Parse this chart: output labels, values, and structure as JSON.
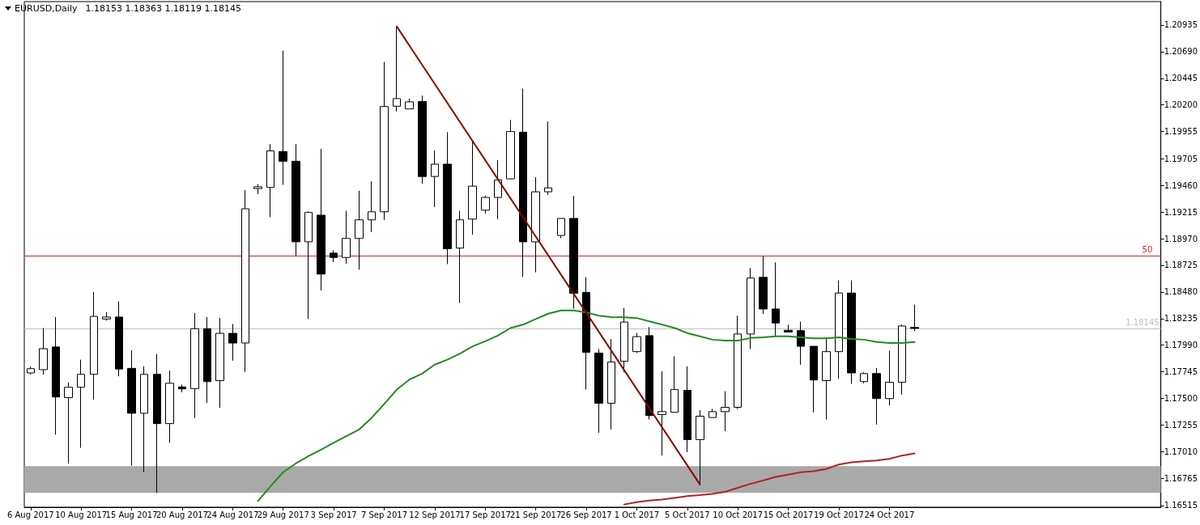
{
  "chart_data": {
    "type": "candlestick",
    "title": "EURUSD,Daily",
    "subtitle": "1.18153 1.18363 1.18119 1.18145",
    "categories": [
      "6 Aug 2017",
      null,
      null,
      null,
      "10 Aug 2017",
      null,
      null,
      null,
      "15 Aug 2017",
      null,
      null,
      null,
      "20 Aug 2017",
      null,
      null,
      null,
      "24 Aug 2017",
      null,
      null,
      null,
      "29 Aug 2017",
      null,
      null,
      null,
      "3 Sep 2017",
      null,
      null,
      null,
      "7 Sep 2017",
      null,
      null,
      null,
      "12 Sep 2017",
      null,
      null,
      null,
      "17 Sep 2017",
      null,
      null,
      null,
      "21 Sep 2017",
      null,
      null,
      null,
      "26 Sep 2017",
      null,
      null,
      null,
      "1 Oct 2017",
      null,
      null,
      null,
      "5 Oct 2017",
      null,
      null,
      null,
      "10 Oct 2017",
      null,
      null,
      null,
      "15 Oct 2017",
      null,
      null,
      null,
      "19 Oct 2017",
      null,
      null,
      null,
      "24 Oct 2017",
      null,
      null,
      null,
      null,
      null,
      null,
      null,
      null,
      null,
      null,
      null,
      null,
      null,
      null,
      null,
      null,
      null,
      null,
      null,
      null,
      null
    ],
    "ohlc": [
      [
        1.17735,
        1.17796,
        1.17719,
        1.17774
      ],
      [
        1.17765,
        1.18148,
        1.17719,
        1.17958
      ],
      [
        1.17974,
        1.18249,
        1.17168,
        1.17514
      ],
      [
        1.17508,
        1.17649,
        1.16902,
        1.17603
      ],
      [
        1.17603,
        1.17857,
        1.17046,
        1.17722
      ],
      [
        1.17722,
        1.18479,
        1.1749,
        1.18255
      ],
      [
        1.18231,
        1.18295,
        1.18216,
        1.18249
      ],
      [
        1.18249,
        1.18393,
        1.17704,
        1.17771
      ],
      [
        1.17777,
        1.17943,
        1.16883,
        1.17364
      ],
      [
        1.17364,
        1.17796,
        1.16822,
        1.17722
      ],
      [
        1.17722,
        1.17909,
        1.16632,
        1.17269
      ],
      [
        1.17269,
        1.17757,
        1.17092,
        1.1764
      ],
      [
        1.17606,
        1.17628,
        1.17557,
        1.17588
      ],
      [
        1.17591,
        1.18286,
        1.17321,
        1.18142
      ],
      [
        1.18142,
        1.18249,
        1.17459,
        1.17655
      ],
      [
        1.17664,
        1.1824,
        1.17413,
        1.18099
      ],
      [
        1.18099,
        1.18185,
        1.17848,
        1.1801
      ],
      [
        1.1801,
        1.19416,
        1.17744,
        1.19245
      ],
      [
        1.19431,
        1.19471,
        1.19379,
        1.19447
      ],
      [
        1.19441,
        1.19839,
        1.19168,
        1.19777
      ],
      [
        1.19771,
        1.20699,
        1.19465,
        1.19682
      ],
      [
        1.19682,
        1.19839,
        1.18813,
        1.18941
      ],
      [
        1.18941,
        1.1922,
        1.18231,
        1.19211
      ],
      [
        1.19186,
        1.19796,
        1.18494,
        1.18644
      ],
      [
        1.18837,
        1.18862,
        1.18755,
        1.18797
      ],
      [
        1.18797,
        1.19226,
        1.18739,
        1.18972
      ],
      [
        1.18972,
        1.1941,
        1.18684,
        1.19143
      ],
      [
        1.19143,
        1.19496,
        1.1903,
        1.19217
      ],
      [
        1.19217,
        1.20595,
        1.19143,
        1.20185
      ],
      [
        1.20188,
        1.2092,
        1.20139,
        1.20258
      ],
      [
        1.20163,
        1.20258,
        1.20163,
        1.20228
      ],
      [
        1.20231,
        1.20286,
        1.19474,
        1.19542
      ],
      [
        1.19542,
        1.1978,
        1.1926,
        1.19655
      ],
      [
        1.19655,
        1.19949,
        1.18736,
        1.18877
      ],
      [
        1.18883,
        1.19226,
        1.18378,
        1.19143
      ],
      [
        1.1915,
        1.19869,
        1.19006,
        1.19453
      ],
      [
        1.19232,
        1.19367,
        1.19199,
        1.19349
      ],
      [
        1.19349,
        1.19692,
        1.1915,
        1.19511
      ],
      [
        1.1952,
        1.20062,
        1.1952,
        1.19955
      ],
      [
        1.19949,
        1.2035,
        1.18617,
        1.18941
      ],
      [
        1.18941,
        1.19535,
        1.1866,
        1.19401
      ],
      [
        1.19401,
        1.20047,
        1.19373,
        1.19437
      ],
      [
        1.18999,
        1.19156,
        1.18975,
        1.19156
      ],
      [
        1.19156,
        1.19364,
        1.18326,
        1.18467
      ],
      [
        1.18476,
        1.18617,
        1.17582,
        1.17925
      ],
      [
        1.17918,
        1.17955,
        1.17183,
        1.17456
      ],
      [
        1.17456,
        1.18047,
        1.17214,
        1.17836
      ],
      [
        1.17842,
        1.18332,
        1.17741,
        1.18203
      ],
      [
        1.17931,
        1.18102,
        1.17918,
        1.18069
      ],
      [
        1.18078,
        1.18157,
        1.17306,
        1.17343
      ],
      [
        1.17352,
        1.1775,
        1.16975,
        1.17379
      ],
      [
        1.17373,
        1.17888,
        1.17373,
        1.17582
      ],
      [
        1.17575,
        1.17796,
        1.17006,
        1.17122
      ],
      [
        1.17122,
        1.17392,
        1.16709,
        1.17337
      ],
      [
        1.17325,
        1.17404,
        1.17325,
        1.17379
      ],
      [
        1.17379,
        1.17567,
        1.17199,
        1.17419
      ],
      [
        1.17419,
        1.18261,
        1.17404,
        1.18093
      ],
      [
        1.18093,
        1.18699,
        1.17955,
        1.18608
      ],
      [
        1.18614,
        1.18807,
        1.18277,
        1.18323
      ],
      [
        1.18323,
        1.18751,
        1.18078,
        1.18194
      ],
      [
        1.18127,
        1.18179,
        1.18111,
        1.18111
      ],
      [
        1.18124,
        1.18206,
        1.17811,
        1.1798
      ],
      [
        1.1798,
        1.1798,
        1.17373,
        1.1767
      ],
      [
        1.17664,
        1.18062,
        1.17306,
        1.17931
      ],
      [
        1.17931,
        1.18586,
        1.1768,
        1.1847
      ],
      [
        1.1847,
        1.18586,
        1.17634,
        1.17735
      ],
      [
        1.17655,
        1.17741,
        1.1764,
        1.17729
      ],
      [
        1.17729,
        1.17781,
        1.1726,
        1.17499
      ],
      [
        1.17499,
        1.1794,
        1.17435,
        1.17649
      ],
      [
        1.17649,
        1.18179,
        1.17536,
        1.18167
      ],
      [
        1.18153,
        1.18363,
        1.18119,
        1.18145
      ],
      null,
      null,
      null,
      null,
      null,
      null,
      null,
      null,
      null,
      null,
      null,
      null,
      null,
      null,
      null,
      null,
      null,
      null,
      null
    ],
    "series": [
      {
        "type": "line",
        "color": "#228b22",
        "values": [
          null,
          null,
          null,
          null,
          null,
          null,
          null,
          null,
          null,
          null,
          null,
          null,
          null,
          null,
          null,
          null,
          null,
          null,
          1.16556,
          1.16693,
          1.16822,
          1.16902,
          1.16969,
          1.1703,
          1.17092,
          1.17153,
          1.17214,
          1.17321,
          1.1745,
          1.17582,
          1.17674,
          1.17729,
          1.17811,
          1.17857,
          1.17913,
          1.1798,
          1.18026,
          1.18078,
          1.18148,
          1.18179,
          1.18231,
          1.1828,
          1.1831,
          1.1831,
          1.18292,
          1.18261,
          1.18249,
          1.18246,
          1.1824,
          1.18209,
          1.18179,
          1.18148,
          1.18102,
          1.18072,
          1.18041,
          1.18032,
          1.18032,
          1.18056,
          1.18062,
          1.18072,
          1.18072,
          1.18062,
          1.18053,
          1.18053,
          1.18062,
          1.18047,
          1.18041,
          1.18019,
          1.1801,
          1.1801,
          1.18019,
          null,
          null,
          null,
          null,
          null,
          null,
          null,
          null,
          null,
          null,
          null,
          null,
          null,
          null,
          null,
          null,
          null,
          null,
          null
        ]
      },
      {
        "type": "line",
        "color": "#b22222",
        "values": [
          null,
          null,
          null,
          null,
          null,
          null,
          null,
          null,
          null,
          null,
          null,
          null,
          null,
          null,
          null,
          null,
          null,
          null,
          null,
          null,
          null,
          null,
          null,
          null,
          null,
          null,
          null,
          null,
          null,
          null,
          null,
          null,
          null,
          null,
          null,
          null,
          null,
          null,
          null,
          null,
          null,
          null,
          null,
          null,
          null,
          null,
          null,
          1.16525,
          1.16546,
          1.16562,
          1.16571,
          1.16586,
          1.16602,
          1.16611,
          1.16623,
          1.16641,
          1.16678,
          1.16715,
          1.16745,
          1.16779,
          1.168,
          1.16822,
          1.16831,
          1.16852,
          1.16892,
          1.16913,
          1.16923,
          1.16929,
          1.16944,
          1.16975,
          1.16994,
          null,
          null,
          null,
          null,
          null,
          null,
          null,
          null,
          null,
          null,
          null,
          null,
          null,
          null,
          null,
          null,
          null,
          null,
          null
        ]
      },
      {
        "type": "line",
        "color": "#8b0000",
        "values": [
          null,
          null,
          null,
          null,
          null,
          null,
          null,
          null,
          null,
          null,
          null,
          null,
          null,
          null,
          null,
          null,
          null,
          null,
          null,
          null,
          null,
          null,
          null,
          null,
          null,
          null,
          null,
          null,
          null,
          1.2092,
          null,
          null,
          null,
          null,
          null,
          null,
          null,
          null,
          null,
          null,
          null,
          null,
          null,
          null,
          null,
          null,
          null,
          null,
          null,
          null,
          null,
          null,
          null,
          1.16709,
          null,
          null,
          null,
          null,
          null,
          null,
          null,
          null,
          null,
          null,
          null,
          null,
          null,
          null,
          null,
          null,
          null,
          null,
          null,
          null,
          null,
          null,
          null,
          null,
          null,
          null,
          null,
          null,
          null,
          null,
          null,
          null,
          null,
          null,
          null,
          null
        ]
      }
    ],
    "annotations": [
      {
        "text": "50",
        "y": 1.18815
      }
    ],
    "ylim": [
      1.165,
      1.2115
    ],
    "yticks": [
      1.16515,
      1.16765,
      {
        "value": 1.1701,
        "label": "1.17010"
      },
      1.17255,
      {
        "value": 1.175,
        "label": "1.17500"
      },
      1.17745,
      {
        "value": 1.1799,
        "label": "1.17990"
      },
      1.18235,
      {
        "value": 1.1848,
        "label": "1.18480"
      },
      1.18725,
      {
        "value": 1.1897,
        "label": "1.18970"
      },
      1.19215,
      {
        "value": 1.1946,
        "label": "1.19460"
      },
      1.19705,
      1.19955,
      {
        "value": 1.202,
        "label": "1.20200"
      },
      1.20445,
      {
        "value": 1.2069,
        "label": "1.20690"
      },
      1.20935
    ],
    "ref_lines": [
      {
        "axis": "y",
        "value": 1.18815,
        "color": "#dd2222"
      },
      {
        "axis": "y",
        "value": 1.18145,
        "label": "1.18145",
        "color": "#c0c0c0"
      }
    ],
    "bands": [
      {
        "axis": "y",
        "from": 1.16632,
        "to": 1.16877,
        "color": "#a9a9a9"
      }
    ],
    "grid": false,
    "marker": "none",
    "line_style": "solid"
  }
}
